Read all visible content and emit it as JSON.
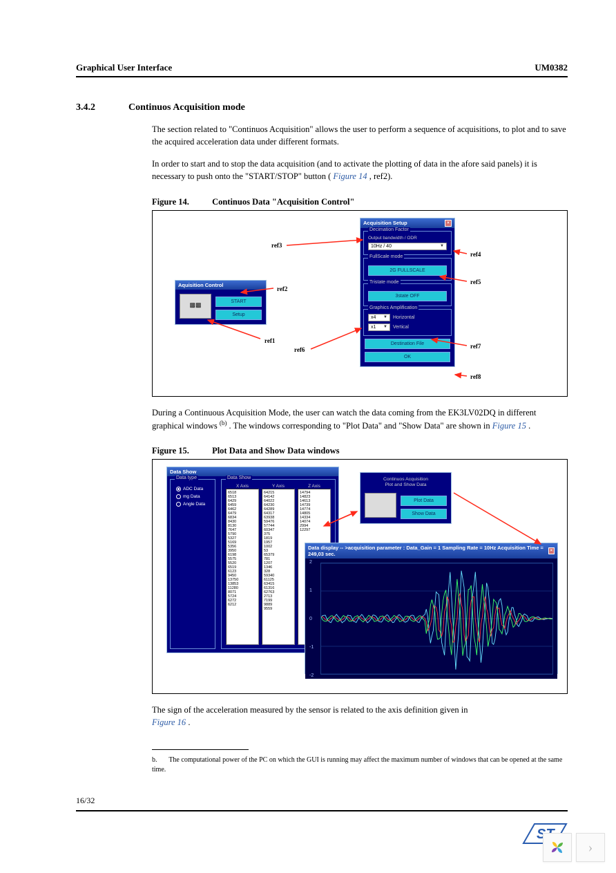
{
  "header": {
    "left": "Graphical User Interface",
    "right": "UM0382"
  },
  "section": {
    "number": "3.4.2",
    "title": "Continuos Acquisition mode"
  },
  "para1": "The section related to \"Continuos Acquisition\" allows the user to perform a sequence of acquisitions, to plot and to save the acquired acceleration data under different formats.",
  "para2_a": "In order to start and to stop the data acquisition (and to activate the plotting of data in the afore said panels) it is necessary to push onto the \"START/STOP\" button (",
  "para2_link": "Figure 14",
  "para2_b": ", ref2).",
  "fig14": {
    "num": "Figure 14.",
    "title": "Continuos Data \"Acquisition Control\"",
    "refs": {
      "r1": "ref1",
      "r2": "ref2",
      "r3": "ref3",
      "r4": "ref4",
      "r5": "ref5",
      "r6": "ref6",
      "r7": "ref7",
      "r8": "ref8"
    },
    "acq_ctrl": {
      "title": "Aquisition Control",
      "start": "START",
      "setup": "Setup"
    },
    "acq_setup": {
      "title": "Acquisition Setup",
      "decim_label": "Decimation Factor",
      "decim_sub": "Output bandwidth / ODR",
      "decim_value": "10Hz / 40",
      "fullscale_label": "FullScale mode",
      "fullscale_btn": "2G FULLSCALE",
      "tristate_label": "Tristate mode",
      "tristate_btn": "3state OFF",
      "graphamp_label": "Graphics Amplification",
      "h_val": "x4",
      "h_lab": "Horizontal",
      "v_val": "x1",
      "v_lab": "Vertical",
      "dest": "Destination File",
      "ok": "OK"
    },
    "arrow_color": "#ff2a1a"
  },
  "para3_a": "During a Continuous Acquisition Mode, the user can watch the data coming from the EK3LV02DQ in different graphical windows",
  "para3_sup": "(b)",
  "para3_b": ". The windows corresponding to \"Plot Data\" and \"Show Data\" are shown in ",
  "para3_link": "Figure 15",
  "para3_c": ".",
  "fig15": {
    "num": "Figure 15.",
    "title": "Plot Data and Show Data windows",
    "data_show": {
      "title": "Data Show",
      "datatype_label": "Data type",
      "radios": [
        "ADC Data",
        "mg Data",
        "Angle Data"
      ],
      "group_label": "Data Show",
      "col_x": "X Axis",
      "col_y": "Y Axis",
      "col_z": "Z Axis",
      "x_vals": [
        "6518",
        "6513",
        "6429",
        "6459",
        "6462",
        "6479",
        "6834",
        "8430",
        "8130",
        "7647",
        "5790",
        "5327",
        "5169",
        "5356",
        "3950",
        "6198",
        "5575",
        "5520",
        "6519",
        "6123",
        "9450",
        "13750",
        "13853",
        "11280",
        "8071",
        "5724",
        "6272",
        "6212"
      ],
      "y_vals": [
        "64215",
        "64142",
        "64022",
        "64230",
        "64289",
        "64317",
        "63938",
        "59476",
        "57744",
        "60347",
        "375",
        "1819",
        "1957",
        "1002",
        "53",
        "65379",
        "781",
        "1207",
        "1346",
        "328",
        "59340",
        "61125",
        "63415",
        "61316",
        "62763",
        "2713",
        "7199",
        "9889",
        "9559"
      ],
      "z_vals": [
        "14794",
        "14823",
        "14613",
        "14739",
        "14774",
        "14805",
        "14334",
        "14074",
        "2994",
        "12297"
      ]
    },
    "cont_acq": {
      "title": "Continuos Acquisition\nPlot and Show Data",
      "plot_btn": "Plot Data",
      "show_btn": "Show Data"
    },
    "plot": {
      "title": "Data display -- >acquisition parameter :   Data_Gain = 1    Sampling Rate = 10Hz    Acquisition Time = 249,03 sec.",
      "y_ticks": [
        "2",
        "1",
        "0",
        "-1",
        "-2"
      ],
      "bg": "#000048",
      "grid": "#2050a0",
      "line_colors": [
        "#66e0ff",
        "#ff3a3a",
        "#3aff6a"
      ]
    }
  },
  "para4": "The sign of the acceleration measured by the sensor is related to the axis definition given in ",
  "para4_link": "Figure 16",
  "para4_c": ".",
  "footnote": {
    "label": "b.",
    "text": "The computational power of the PC on which the GUI is running may affect the maximum number of windows that can be opened at the same time."
  },
  "page_num": "16/32",
  "logo": {
    "st_fill": "#2a5db0"
  },
  "corner": {
    "flower_colors": [
      "#f9c524",
      "#5ab546",
      "#8244b4",
      "#3aa4dd"
    ],
    "chevron": "›"
  }
}
